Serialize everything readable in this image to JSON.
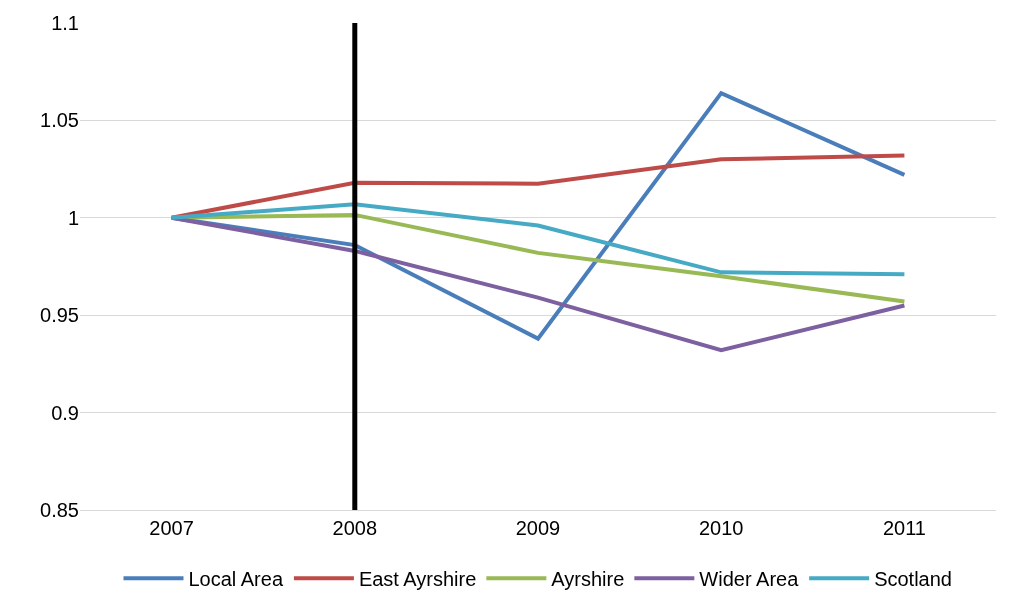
{
  "chart_data": {
    "type": "line",
    "categories": [
      "2007",
      "2008",
      "2009",
      "2010",
      "2011"
    ],
    "series": [
      {
        "name": "Local Area",
        "color": "#4a7ebb",
        "values": [
          1,
          0.986,
          0.938,
          1.064,
          1.022
        ]
      },
      {
        "name": "East Ayrshire",
        "color": "#be4b48",
        "values": [
          1,
          1.018,
          1.0175,
          1.03,
          1.032
        ]
      },
      {
        "name": "Ayrshire",
        "color": "#98b954",
        "values": [
          1,
          1.0015,
          0.982,
          0.97,
          0.957
        ]
      },
      {
        "name": "Wider Area",
        "color": "#7d60a0",
        "values": [
          1,
          0.983,
          0.959,
          0.932,
          0.955
        ]
      },
      {
        "name": "Scotland",
        "color": "#46aac5",
        "values": [
          1,
          1.007,
          0.996,
          0.972,
          0.971
        ]
      }
    ],
    "ylim": [
      0.85,
      1.1
    ],
    "yticks": [
      0.85,
      0.9,
      0.95,
      1,
      1.05,
      1.1
    ],
    "ref_lines": [
      {
        "axis": "x",
        "value": "2008",
        "color": "#000000"
      }
    ],
    "grid": "y",
    "legend": "bottom",
    "marker": "none",
    "line_style": "solid"
  }
}
